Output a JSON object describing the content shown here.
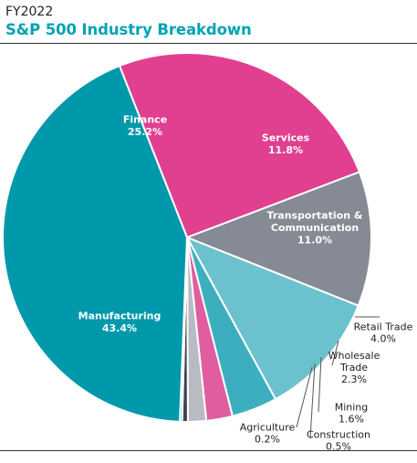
{
  "header": {
    "subtitle": "FY2022",
    "title": "S&P 500 Industry Breakdown"
  },
  "chart_data": {
    "type": "pie",
    "subtitle": "FY2022",
    "title": "S&P 500 Industry Breakdown",
    "unit": "%",
    "slices": [
      {
        "label": "Finance",
        "value": 25.2,
        "display": "25.2%",
        "color": "#e0408f",
        "label_inside": true,
        "text_color": "#ffffff"
      },
      {
        "label": "Services",
        "value": 11.8,
        "display": "11.8%",
        "color": "#858a94",
        "label_inside": true,
        "text_color": "#ffffff"
      },
      {
        "label": "Transportation & Communication",
        "value": 11.0,
        "display": "11.0%",
        "color": "#6cc1cf",
        "label_inside": true,
        "text_color": "#ffffff"
      },
      {
        "label": "Retail Trade",
        "value": 4.0,
        "display": "4.0%",
        "color": "#3cafbf",
        "label_inside": false,
        "text_color": "#222222"
      },
      {
        "label": "Wholesale Trade",
        "value": 2.3,
        "display": "2.3%",
        "color": "#de5ea0",
        "label_inside": false,
        "text_color": "#222222"
      },
      {
        "label": "Mining",
        "value": 1.6,
        "display": "1.6%",
        "color": "#b8bcc2",
        "label_inside": false,
        "text_color": "#222222"
      },
      {
        "label": "Construction",
        "value": 0.5,
        "display": "0.5%",
        "color": "#3b4450",
        "label_inside": false,
        "text_color": "#222222"
      },
      {
        "label": "Agriculture",
        "value": 0.2,
        "display": "0.2%",
        "color": "#0096a8",
        "label_inside": false,
        "text_color": "#222222"
      },
      {
        "label": "Manufacturing",
        "value": 43.4,
        "display": "43.4%",
        "color": "#0099ab",
        "label_inside": true,
        "text_color": "#ffffff"
      }
    ]
  }
}
